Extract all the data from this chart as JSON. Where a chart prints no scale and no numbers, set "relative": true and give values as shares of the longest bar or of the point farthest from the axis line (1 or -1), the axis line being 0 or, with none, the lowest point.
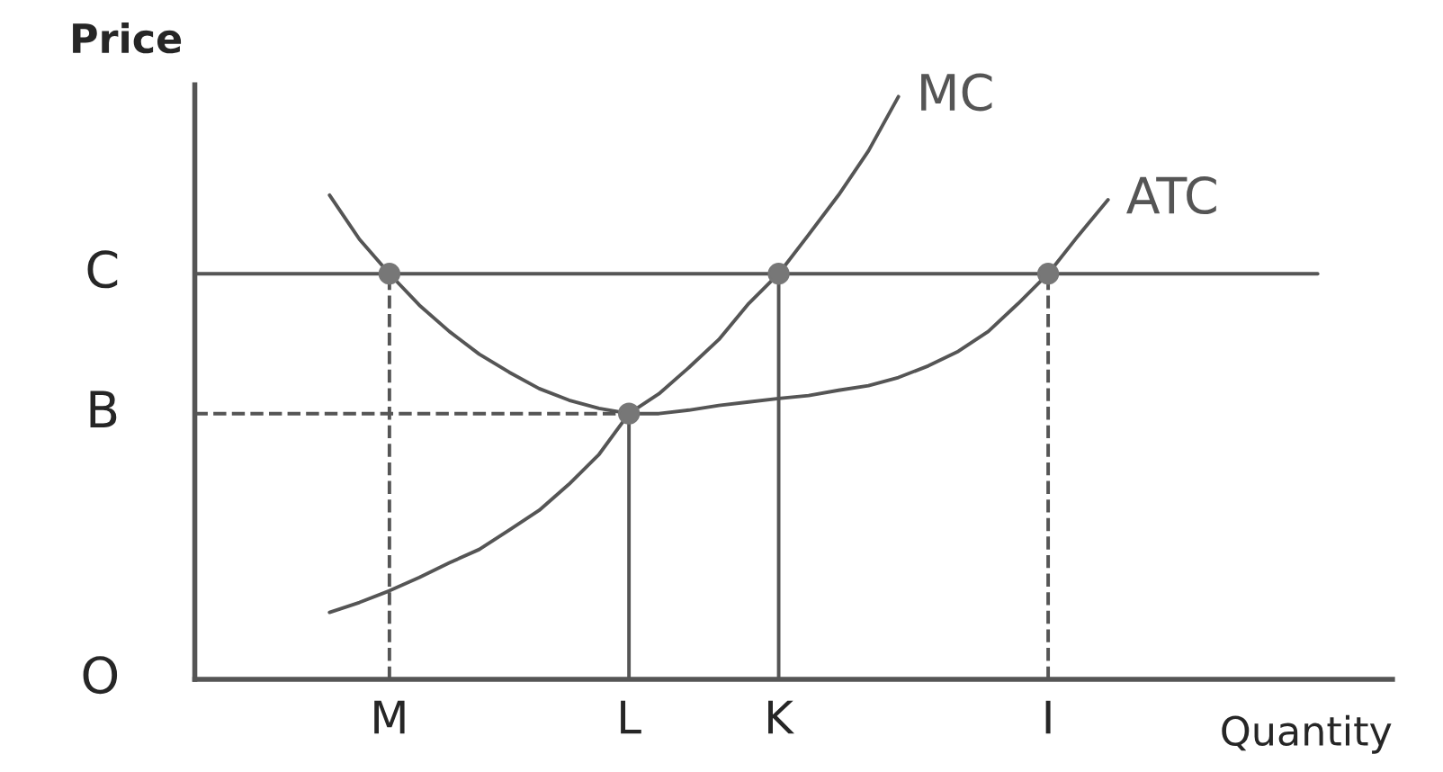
{
  "chart_data": {
    "type": "line",
    "relative": true,
    "xlabel": "Quantity",
    "ylabel": "Price",
    "categories": [
      null,
      null,
      null,
      null,
      null,
      null,
      "M",
      null,
      null,
      null,
      null,
      null,
      null,
      null,
      "L",
      null,
      null,
      null,
      null,
      "K",
      null,
      null,
      null,
      null,
      null,
      null,
      null,
      null,
      "I",
      null,
      null,
      null,
      null,
      null,
      null,
      null,
      null,
      null,
      null,
      null
    ],
    "series": [
      {
        "name": "MC",
        "color": "#555555",
        "values": [
          null,
          null,
          null,
          null,
          0.115,
          0.132,
          0.152,
          0.175,
          0.2,
          0.223,
          0.256,
          0.29,
          0.335,
          0.386,
          0.456,
          0.49,
          0.535,
          0.583,
          0.645,
          0.696,
          0.763,
          0.831,
          0.907,
          1.0,
          null,
          null,
          null,
          null,
          null,
          null,
          null,
          null,
          null,
          null,
          null,
          null,
          null,
          null,
          null,
          null
        ]
      },
      {
        "name": "ATC",
        "color": "#555555",
        "values": [
          null,
          null,
          null,
          null,
          0.831,
          0.755,
          0.696,
          0.642,
          0.597,
          0.558,
          0.527,
          0.499,
          0.479,
          0.465,
          0.456,
          0.456,
          0.462,
          0.47,
          0.476,
          0.482,
          0.487,
          0.496,
          0.504,
          0.518,
          0.538,
          0.563,
          0.597,
          0.645,
          0.696,
          0.761,
          0.823,
          null,
          null,
          null,
          null,
          null,
          null,
          null,
          null,
          null
        ]
      },
      {
        "type": "line",
        "color": "#555555",
        "line_style": "dashed",
        "x": [
          "M",
          "M"
        ],
        "values": [
          0,
          0.696
        ]
      },
      {
        "type": "line",
        "color": "#555555",
        "line_style": "solid",
        "x": [
          "L",
          "L"
        ],
        "values": [
          0,
          0.456
        ]
      },
      {
        "type": "line",
        "color": "#555555",
        "line_style": "solid",
        "x": [
          "K",
          "K"
        ],
        "values": [
          0,
          0.696
        ]
      },
      {
        "type": "line",
        "color": "#555555",
        "line_style": "dashed",
        "x": [
          "I",
          "I"
        ],
        "values": [
          0,
          0.696
        ]
      },
      {
        "type": "scatter",
        "color": "#777777",
        "marker": "circle",
        "x": [
          "M",
          "K",
          "I",
          "L"
        ],
        "values": [
          0.696,
          0.696,
          0.696,
          0.456
        ]
      }
    ],
    "ref_lines": [
      {
        "axis": "y",
        "value": 0.696,
        "label": "C",
        "color": "#555555",
        "line_style": "solid"
      },
      {
        "axis": "y",
        "value": 0.456,
        "label": "B",
        "color": "#555555",
        "line_style": "dashed"
      }
    ],
    "annotations": [
      "O"
    ]
  }
}
